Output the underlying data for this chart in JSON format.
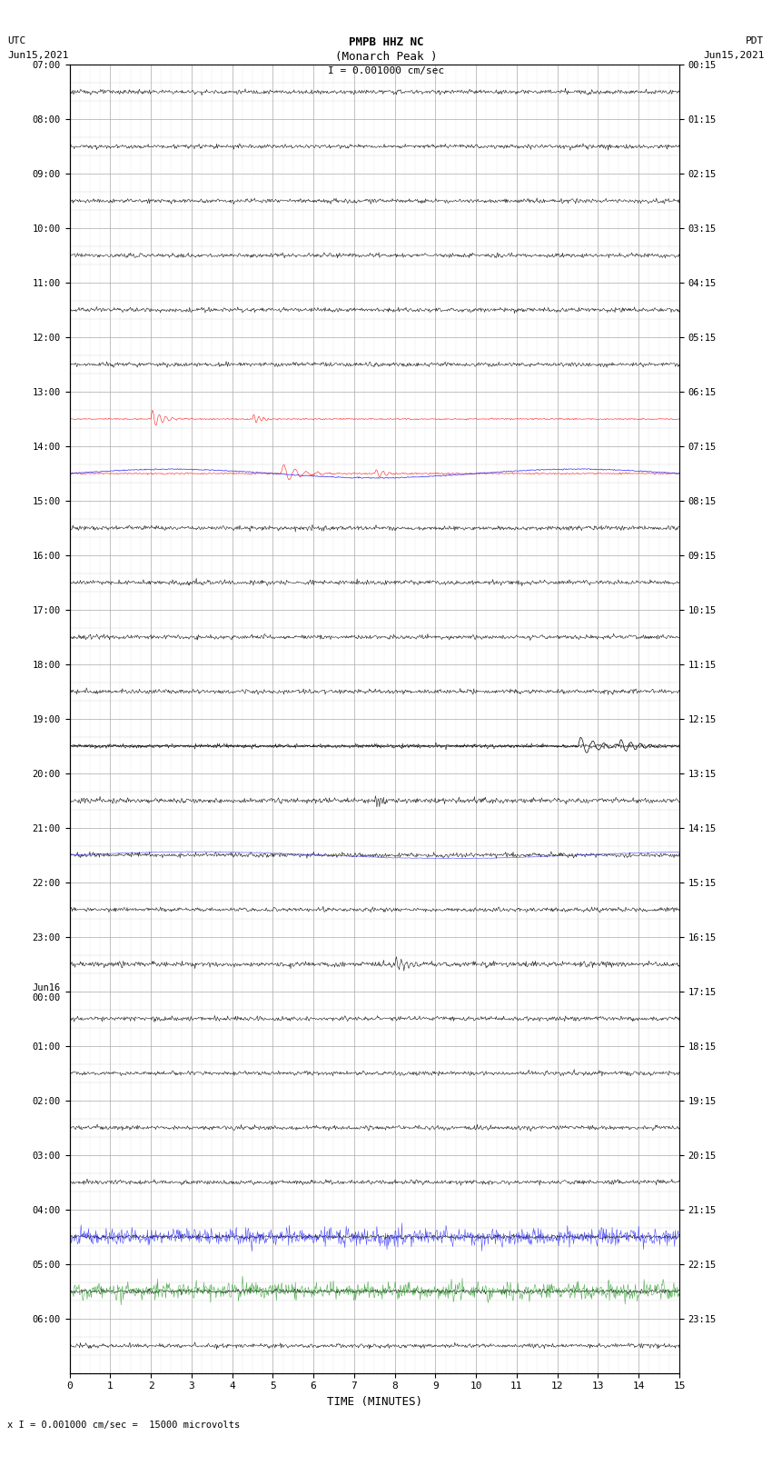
{
  "title_line1": "PMPB HHZ NC",
  "title_line2": "(Monarch Peak )",
  "scale_text": "I = 0.001000 cm/sec",
  "left_label_top": "UTC",
  "left_label_date": "Jun15,2021",
  "right_label_top": "PDT",
  "right_label_date": "Jun15,2021",
  "footer_text": "x I = 0.001000 cm/sec =  15000 microvolts",
  "xlabel": "TIME (MINUTES)",
  "bg_color": "#ffffff",
  "grid_color": "#aaaaaa",
  "trace_color_main": "#000000",
  "trace_color_blue": "#0000ff",
  "trace_color_red": "#ff0000",
  "utc_times_left": [
    "07:00",
    "08:00",
    "09:00",
    "10:00",
    "11:00",
    "12:00",
    "13:00",
    "14:00",
    "15:00",
    "16:00",
    "17:00",
    "18:00",
    "19:00",
    "20:00",
    "21:00",
    "22:00",
    "23:00",
    "Jun16\n00:00",
    "01:00",
    "02:00",
    "03:00",
    "04:00",
    "05:00",
    "06:00"
  ],
  "pdt_times_right": [
    "00:15",
    "01:15",
    "02:15",
    "03:15",
    "04:15",
    "05:15",
    "06:15",
    "07:15",
    "08:15",
    "09:15",
    "10:15",
    "11:15",
    "12:15",
    "13:15",
    "14:15",
    "15:15",
    "16:15",
    "17:15",
    "18:15",
    "19:15",
    "20:15",
    "21:15",
    "22:15",
    "23:15"
  ],
  "num_rows": 24,
  "minutes_per_row": 15,
  "figwidth": 8.5,
  "figheight": 16.13,
  "dpi": 100
}
